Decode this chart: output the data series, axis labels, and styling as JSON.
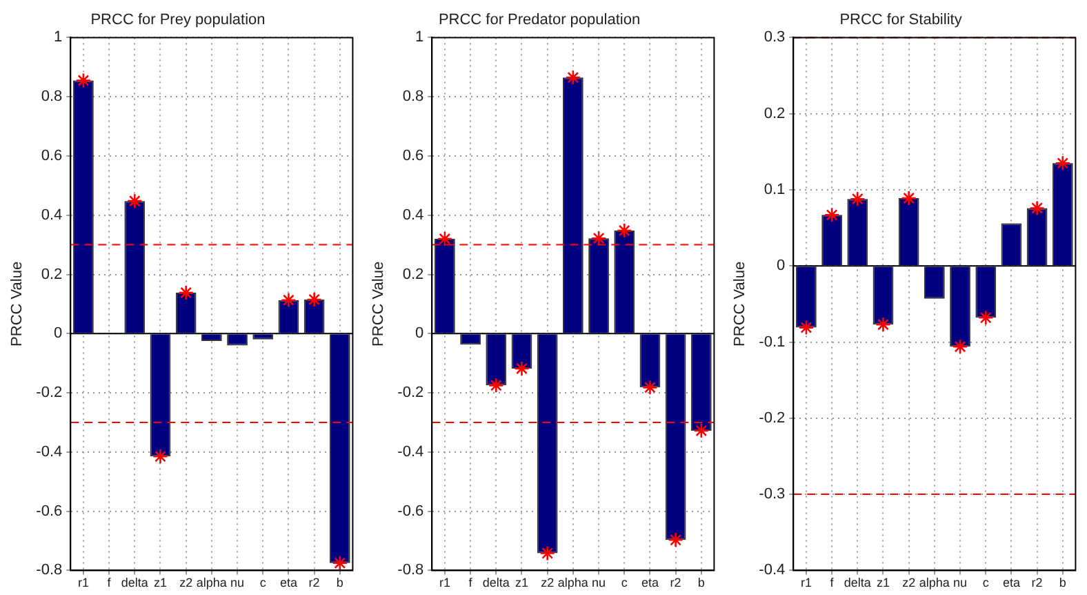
{
  "chart_data": [
    {
      "type": "bar",
      "title": "PRCC for Prey population",
      "ylabel": "PRCC Value",
      "categories": [
        "r1",
        "f",
        "delta",
        "z1",
        "z2",
        "alpha",
        "nu",
        "c",
        "eta",
        "r2",
        "b"
      ],
      "series": [
        {
          "color": "#000080",
          "values": [
            0.855,
            0.003,
            0.448,
            -0.415,
            0.138,
            -0.025,
            -0.04,
            -0.02,
            0.113,
            0.115,
            -0.775
          ]
        },
        {
          "type": "scatter",
          "color": "#ff0000",
          "marker": "cross",
          "x": [
            "r1",
            "delta",
            "z1",
            "z2",
            "eta",
            "r2",
            "b"
          ],
          "values": [
            0.855,
            0.448,
            -0.415,
            0.138,
            0.113,
            0.115,
            -0.775
          ]
        }
      ],
      "ylim": [
        -0.8,
        1
      ],
      "yticks": [
        -0.8,
        -0.6,
        -0.4,
        -0.2,
        0,
        0.2,
        0.4,
        0.6,
        0.8,
        1
      ],
      "grid": true,
      "ref_lines": [
        {
          "axis": "y",
          "value": 0.3,
          "color": "#ff0000",
          "line_style": "dashed"
        },
        {
          "axis": "y",
          "value": -0.3,
          "color": "#ff0000",
          "line_style": "dashed"
        }
      ]
    },
    {
      "type": "bar",
      "title": "PRCC for Predator population",
      "ylabel": "PRCC Value",
      "categories": [
        "r1",
        "f",
        "delta",
        "z1",
        "z2",
        "alpha",
        "nu",
        "c",
        "eta",
        "r2",
        "b"
      ],
      "series": [
        {
          "color": "#000080",
          "values": [
            0.32,
            -0.037,
            -0.175,
            -0.118,
            -0.742,
            0.865,
            0.322,
            0.348,
            -0.182,
            -0.697,
            -0.328
          ]
        },
        {
          "type": "scatter",
          "color": "#ff0000",
          "marker": "cross",
          "x": [
            "r1",
            "delta",
            "z1",
            "z2",
            "alpha",
            "nu",
            "c",
            "eta",
            "r2",
            "b"
          ],
          "values": [
            0.32,
            -0.175,
            -0.118,
            -0.742,
            0.865,
            0.322,
            0.348,
            -0.182,
            -0.697,
            -0.328
          ]
        }
      ],
      "ylim": [
        -0.8,
        1
      ],
      "yticks": [
        -0.8,
        -0.6,
        -0.4,
        -0.2,
        0,
        0.2,
        0.4,
        0.6,
        0.8,
        1
      ],
      "grid": true,
      "ref_lines": [
        {
          "axis": "y",
          "value": 0.3,
          "color": "#ff0000",
          "line_style": "dashed"
        },
        {
          "axis": "y",
          "value": -0.3,
          "color": "#ff0000",
          "line_style": "dashed"
        }
      ]
    },
    {
      "type": "bar",
      "title": "PRCC for Stability",
      "ylabel": "PRCC Value",
      "categories": [
        "r1",
        "f",
        "delta",
        "z1",
        "z2",
        "alpha",
        "nu",
        "c",
        "eta",
        "r2",
        "b"
      ],
      "series": [
        {
          "color": "#000080",
          "values": [
            -0.081,
            0.067,
            0.088,
            -0.077,
            0.089,
            -0.043,
            -0.106,
            -0.068,
            0.056,
            0.076,
            0.135
          ]
        },
        {
          "type": "scatter",
          "color": "#ff0000",
          "marker": "cross",
          "x": [
            "r1",
            "f",
            "delta",
            "z1",
            "z2",
            "nu",
            "c",
            "r2",
            "b"
          ],
          "values": [
            -0.081,
            0.067,
            0.088,
            -0.077,
            0.089,
            -0.106,
            -0.068,
            0.076,
            0.135
          ]
        }
      ],
      "ylim": [
        -0.4,
        0.3
      ],
      "yticks": [
        -0.4,
        -0.3,
        -0.2,
        -0.1,
        0,
        0.1,
        0.2,
        0.3
      ],
      "grid": true,
      "ref_lines": [
        {
          "axis": "y",
          "value": 0.3,
          "color": "#ff0000",
          "line_style": "dashed"
        },
        {
          "axis": "y",
          "value": -0.3,
          "color": "#ff0000",
          "line_style": "dashed"
        }
      ]
    }
  ]
}
